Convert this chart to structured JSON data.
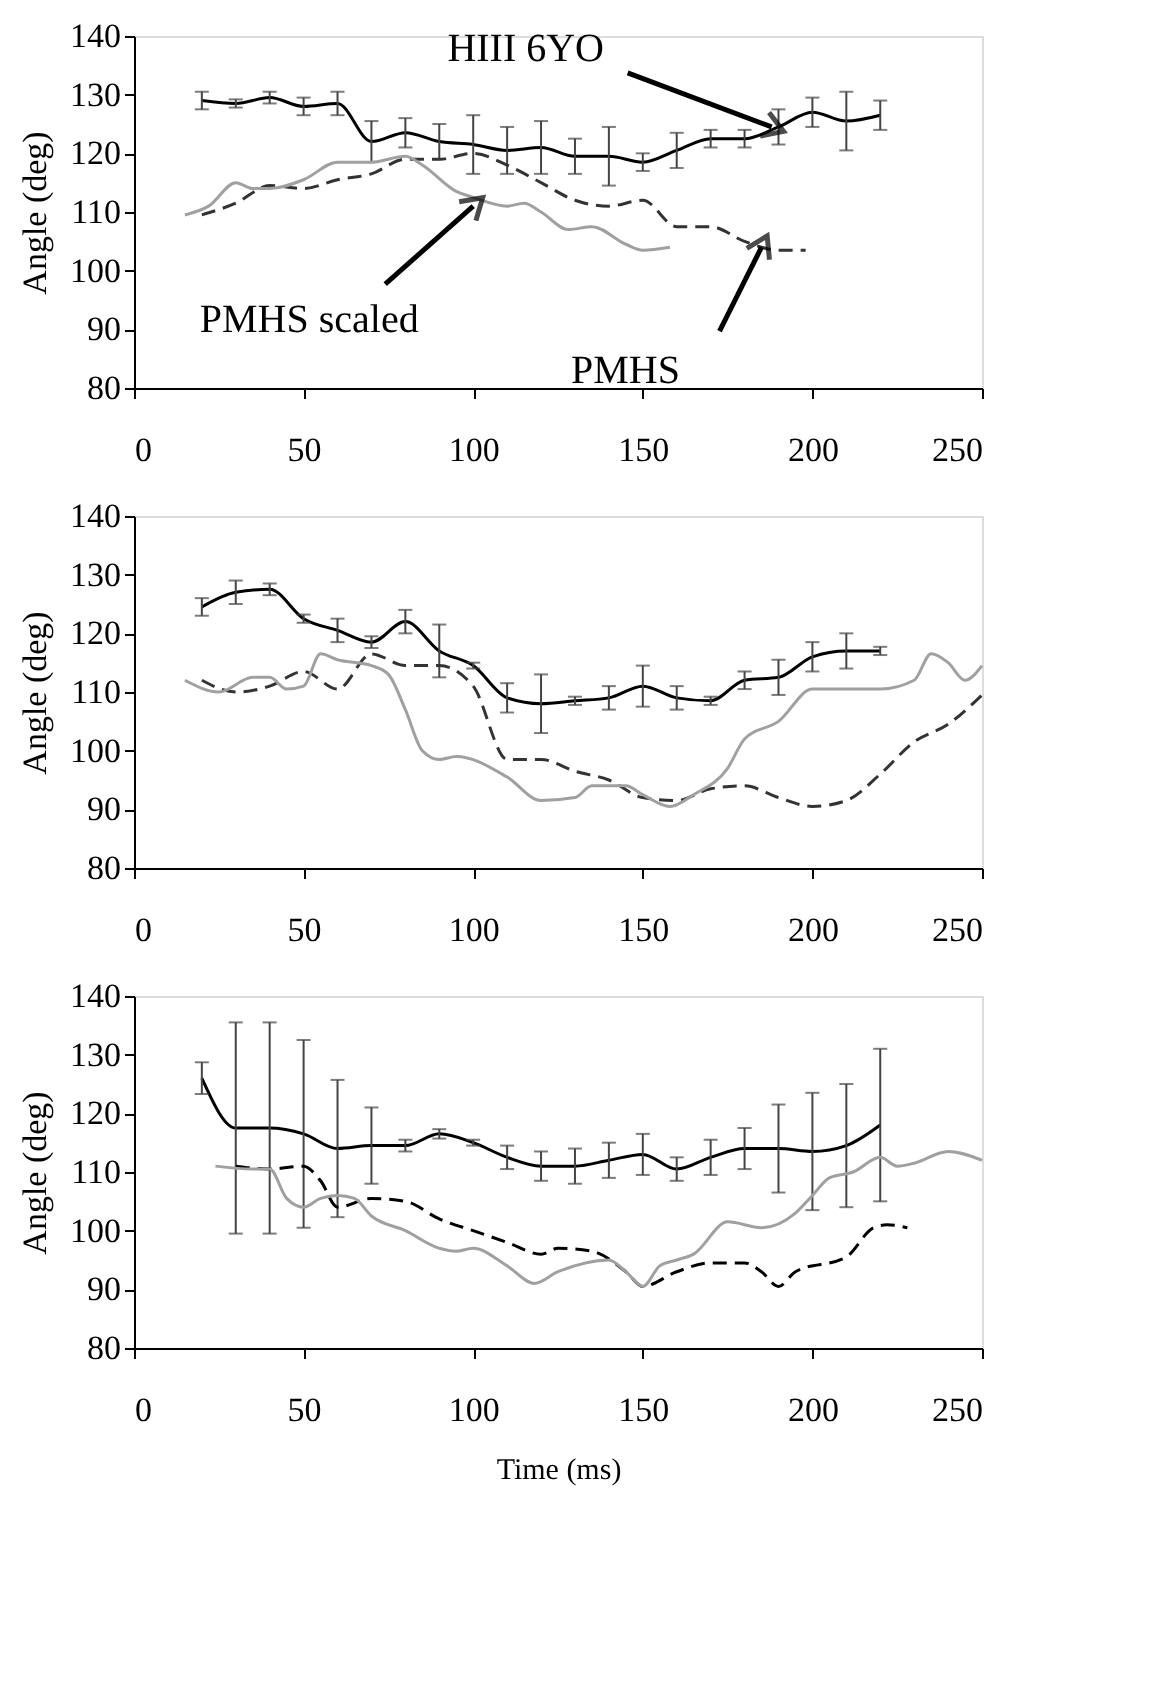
{
  "chart_data": [
    {
      "type": "line",
      "ylabel": "Angle (deg)",
      "xlim": [
        0,
        250
      ],
      "xticks": [
        0,
        50,
        100,
        150,
        200,
        250
      ],
      "ylim": [
        80,
        140
      ],
      "yticks": [
        80,
        90,
        100,
        110,
        120,
        130,
        140
      ],
      "grid": false,
      "annotations": [
        {
          "text": "HIII 6YO",
          "x": 188,
          "y": 124.5
        },
        {
          "text": "PMHS scaled",
          "x": 100,
          "y": 111
        },
        {
          "text": "PMHS",
          "x": 185,
          "y": 104
        }
      ],
      "series": [
        {
          "color": "#000000",
          "line_style": "solid",
          "x": [
            20,
            30,
            40,
            50,
            60,
            70,
            80,
            90,
            100,
            110,
            120,
            130,
            140,
            150,
            160,
            170,
            180,
            190,
            200,
            210,
            220
          ],
          "values": [
            129,
            128.5,
            129.5,
            128,
            128.5,
            122,
            123.5,
            122,
            121.5,
            120.5,
            121,
            119.5,
            119.5,
            118.5,
            120.5,
            122.5,
            122.5,
            124.5,
            127,
            125.5,
            126.5
          ],
          "errors": [
            1.5,
            0.7,
            1,
            1.5,
            2,
            3.5,
            2.5,
            3,
            5,
            4,
            4.5,
            3,
            5,
            1.5,
            3,
            1.5,
            1.5,
            3,
            2.5,
            5,
            2.5
          ]
        },
        {
          "color": "#333333",
          "line_style": "dashed",
          "x": [
            20,
            30,
            40,
            50,
            60,
            70,
            80,
            90,
            100,
            110,
            120,
            130,
            140,
            150,
            160,
            170,
            180,
            190,
            198
          ],
          "values": [
            109.5,
            111.5,
            114.5,
            114,
            115.5,
            116.5,
            119,
            119,
            120,
            118,
            115,
            112,
            111,
            112,
            107.5,
            107.5,
            105,
            103.5,
            103.5
          ]
        },
        {
          "color": "#a0a0a0",
          "line_style": "solid",
          "x": [
            15,
            22,
            30,
            35,
            40,
            50,
            60,
            70,
            80,
            85,
            95,
            100,
            110,
            115,
            120,
            128,
            135,
            145,
            150,
            158
          ],
          "values": [
            109.5,
            111,
            115,
            114,
            114,
            115.5,
            118.5,
            118.5,
            119.5,
            118,
            113.5,
            112.5,
            111,
            111.5,
            110,
            107,
            107.5,
            104.5,
            103.5,
            104
          ]
        }
      ]
    },
    {
      "type": "line",
      "ylabel": "Angle (deg)",
      "xlim": [
        0,
        250
      ],
      "xticks": [
        0,
        50,
        100,
        150,
        200,
        250
      ],
      "ylim": [
        80,
        140
      ],
      "yticks": [
        80,
        90,
        100,
        110,
        120,
        130,
        140
      ],
      "grid": false,
      "series": [
        {
          "color": "#000000",
          "line_style": "solid",
          "x": [
            20,
            30,
            40,
            50,
            60,
            70,
            80,
            90,
            100,
            110,
            120,
            130,
            140,
            150,
            160,
            170,
            180,
            190,
            200,
            210,
            220
          ],
          "values": [
            124.5,
            127,
            127.5,
            122.5,
            120.5,
            118.5,
            122,
            117,
            114.5,
            109,
            108,
            108.5,
            109,
            111,
            109,
            108.5,
            112,
            112.5,
            116,
            117,
            117
          ],
          "errors": [
            1.5,
            2,
            1,
            0.7,
            2,
            1,
            2,
            4.5,
            0.5,
            2.5,
            5,
            0.7,
            2,
            3.5,
            2,
            0.7,
            1.5,
            3,
            2.5,
            3,
            0.7
          ]
        },
        {
          "color": "#333333",
          "line_style": "dashed",
          "x": [
            20,
            30,
            40,
            50,
            60,
            70,
            80,
            90,
            100,
            110,
            120,
            130,
            140,
            150,
            160,
            170,
            180,
            190,
            200,
            210,
            220,
            230,
            240,
            250
          ],
          "values": [
            112,
            110,
            111,
            113.5,
            110.5,
            116.5,
            114.5,
            114.5,
            111,
            98.5,
            98.5,
            96.5,
            95,
            92,
            91.5,
            93.5,
            94,
            92,
            90.5,
            91.5,
            96,
            101.5,
            104.5,
            109.5
          ]
        },
        {
          "color": "#a0a0a0",
          "line_style": "solid",
          "x": [
            15,
            25,
            35,
            40,
            45,
            50,
            55,
            60,
            70,
            75,
            80,
            85,
            90,
            95,
            110,
            120,
            130,
            135,
            145,
            150,
            158,
            165,
            175,
            180,
            190,
            200,
            220,
            230,
            235,
            240,
            245,
            250
          ],
          "values": [
            112,
            110,
            112.5,
            112.5,
            110.5,
            111,
            116.5,
            115.5,
            114.5,
            113,
            107,
            100,
            98.5,
            99,
            95.5,
            91.5,
            92,
            94,
            94,
            92.5,
            90.5,
            92.5,
            97,
            102,
            105,
            110.5,
            110.5,
            112,
            116.5,
            115,
            112,
            114.5
          ]
        }
      ]
    },
    {
      "type": "line",
      "ylabel": "Angle (deg)",
      "xlabel": "Time (ms)",
      "xlim": [
        0,
        250
      ],
      "xticks": [
        0,
        50,
        100,
        150,
        200,
        250
      ],
      "ylim": [
        80,
        140
      ],
      "yticks": [
        80,
        90,
        100,
        110,
        120,
        130,
        140
      ],
      "grid": false,
      "series": [
        {
          "color": "#000000",
          "line_style": "solid",
          "x": [
            20,
            30,
            40,
            50,
            60,
            70,
            80,
            90,
            100,
            110,
            120,
            130,
            140,
            150,
            160,
            170,
            180,
            190,
            200,
            210,
            220
          ],
          "values": [
            126,
            117.5,
            117.5,
            116.5,
            114,
            114.5,
            114.5,
            116.5,
            115,
            112.5,
            111,
            111,
            112,
            113,
            110.5,
            112.5,
            114,
            114,
            113.5,
            114.5,
            118
          ],
          "errors": [
            2.7,
            18,
            18,
            16,
            11.7,
            6.5,
            1,
            0.8,
            0.5,
            2,
            2.5,
            3,
            3,
            3.5,
            2,
            3,
            3.5,
            7.5,
            10,
            10.5,
            13
          ]
        },
        {
          "color": "#000000",
          "line_style": "dashed",
          "x": [
            30,
            40,
            50,
            55,
            60,
            70,
            80,
            90,
            100,
            110,
            120,
            125,
            135,
            145,
            150,
            160,
            170,
            180,
            185,
            190,
            195,
            210,
            218,
            222,
            228
          ],
          "values": [
            111,
            110.5,
            111,
            108.5,
            104,
            105.5,
            105,
            102,
            100,
            98,
            96,
            97,
            96.5,
            93,
            90.5,
            93,
            94.5,
            94.5,
            93,
            90.5,
            93,
            95.5,
            100.5,
            101,
            100.5
          ]
        },
        {
          "color": "#a0a0a0",
          "line_style": "solid",
          "x": [
            24,
            35,
            40,
            45,
            50,
            55,
            60,
            65,
            70,
            80,
            90,
            95,
            100,
            110,
            118,
            125,
            140,
            145,
            150,
            155,
            160,
            165,
            175,
            185,
            195,
            200,
            205,
            212,
            220,
            225,
            230,
            240,
            250
          ],
          "values": [
            111,
            110.5,
            110.5,
            105.5,
            104,
            105.5,
            106,
            105.5,
            102.5,
            100,
            97,
            96.5,
            97,
            94,
            91,
            93,
            95,
            93,
            90.5,
            94,
            95,
            96,
            101.5,
            100.5,
            103,
            106,
            109,
            110,
            112.5,
            111,
            111.5,
            113.5,
            112
          ]
        }
      ]
    }
  ]
}
